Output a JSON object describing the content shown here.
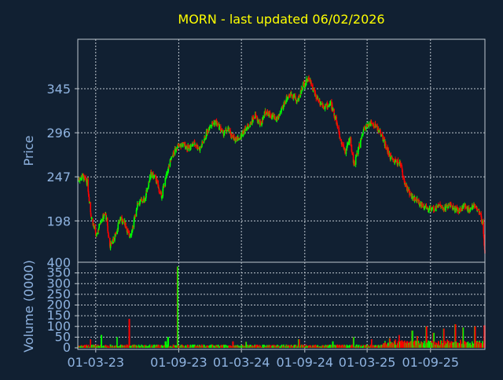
{
  "chart_data": {
    "type": "candlestick",
    "title": "MORN - last updated 06/02/2026",
    "ylabel_price": "Price",
    "ylabel_volume": "Volume (0000)",
    "price_ticks": [
      "345",
      "296",
      "247",
      "198"
    ],
    "price_tick_values": [
      345,
      296,
      247,
      198
    ],
    "price_ylim": [
      152,
      400
    ],
    "volume_top_tick": "400",
    "volume_ticks": [
      "350",
      "300",
      "250",
      "200",
      "150",
      "100",
      "50",
      "0"
    ],
    "volume_tick_values": [
      350,
      300,
      250,
      200,
      150,
      100,
      50,
      0
    ],
    "volume_ylim": [
      0,
      400
    ],
    "x_tick_labels": [
      "01-03-23",
      "01-09-23",
      "01-03-24",
      "01-09-24",
      "01-03-25",
      "01-09-25"
    ],
    "x_tick_dates": [
      "2023-01-03",
      "2023-09-01",
      "2024-03-01",
      "2024-09-01",
      "2025-03-01",
      "2025-09-01"
    ],
    "x_range": [
      "2022-11-12",
      "2026-02-06"
    ],
    "grid": true,
    "colors": {
      "background": "#112032",
      "text": "#8fb3e0",
      "title": "#ffff00",
      "grid": "#c0c8d0",
      "axes": "#c0c8d0",
      "up": "#00ff00",
      "down": "#ff0000"
    },
    "price_path": [
      [
        "2022-11-12",
        243
      ],
      [
        "2022-11-25",
        248
      ],
      [
        "2022-12-10",
        240
      ],
      [
        "2022-12-20",
        205
      ],
      [
        "2023-01-05",
        180
      ],
      [
        "2023-01-18",
        200
      ],
      [
        "2023-02-01",
        205
      ],
      [
        "2023-02-13",
        170
      ],
      [
        "2023-02-27",
        180
      ],
      [
        "2023-03-15",
        200
      ],
      [
        "2023-03-30",
        195
      ],
      [
        "2023-04-10",
        180
      ],
      [
        "2023-04-20",
        190
      ],
      [
        "2023-05-05",
        218
      ],
      [
        "2023-05-25",
        222
      ],
      [
        "2023-06-12",
        250
      ],
      [
        "2023-06-26",
        245
      ],
      [
        "2023-07-12",
        225
      ],
      [
        "2023-07-25",
        245
      ],
      [
        "2023-08-08",
        265
      ],
      [
        "2023-08-25",
        280
      ],
      [
        "2023-09-15",
        283
      ],
      [
        "2023-10-01",
        278
      ],
      [
        "2023-10-15",
        285
      ],
      [
        "2023-11-01",
        278
      ],
      [
        "2023-11-15",
        290
      ],
      [
        "2023-12-01",
        305
      ],
      [
        "2023-12-18",
        308
      ],
      [
        "2024-01-08",
        295
      ],
      [
        "2024-01-22",
        300
      ],
      [
        "2024-02-05",
        290
      ],
      [
        "2024-02-26",
        290
      ],
      [
        "2024-03-10",
        300
      ],
      [
        "2024-03-25",
        305
      ],
      [
        "2024-04-10",
        315
      ],
      [
        "2024-04-25",
        305
      ],
      [
        "2024-05-10",
        320
      ],
      [
        "2024-05-25",
        315
      ],
      [
        "2024-06-10",
        310
      ],
      [
        "2024-06-25",
        320
      ],
      [
        "2024-07-10",
        335
      ],
      [
        "2024-07-25",
        340
      ],
      [
        "2024-08-10",
        330
      ],
      [
        "2024-08-28",
        350
      ],
      [
        "2024-09-15",
        357
      ],
      [
        "2024-09-28",
        340
      ],
      [
        "2024-10-15",
        330
      ],
      [
        "2024-10-30",
        325
      ],
      [
        "2024-11-15",
        328
      ],
      [
        "2024-12-01",
        310
      ],
      [
        "2024-12-12",
        290
      ],
      [
        "2024-12-28",
        275
      ],
      [
        "2025-01-10",
        290
      ],
      [
        "2025-01-22",
        260
      ],
      [
        "2025-02-05",
        280
      ],
      [
        "2025-02-20",
        300
      ],
      [
        "2025-03-10",
        307
      ],
      [
        "2025-03-25",
        304
      ],
      [
        "2025-04-10",
        295
      ],
      [
        "2025-04-20",
        285
      ],
      [
        "2025-05-05",
        270
      ],
      [
        "2025-05-20",
        265
      ],
      [
        "2025-06-05",
        262
      ],
      [
        "2025-06-20",
        238
      ],
      [
        "2025-07-08",
        225
      ],
      [
        "2025-07-25",
        220
      ],
      [
        "2025-08-10",
        215
      ],
      [
        "2025-08-25",
        210
      ],
      [
        "2025-09-10",
        212
      ],
      [
        "2025-09-25",
        215
      ],
      [
        "2025-10-10",
        212
      ],
      [
        "2025-10-25",
        216
      ],
      [
        "2025-11-10",
        212
      ],
      [
        "2025-11-25",
        210
      ],
      [
        "2025-12-08",
        215
      ],
      [
        "2025-12-20",
        210
      ],
      [
        "2026-01-05",
        215
      ],
      [
        "2026-01-20",
        208
      ],
      [
        "2026-01-30",
        195
      ],
      [
        "2026-02-06",
        163
      ]
    ],
    "volume_baseline": 12,
    "volume_spikes": [
      [
        "2022-12-18",
        40
      ],
      [
        "2023-01-20",
        60
      ],
      [
        "2023-03-05",
        50
      ],
      [
        "2023-04-10",
        135
      ],
      [
        "2023-07-25",
        30
      ],
      [
        "2023-08-01",
        50
      ],
      [
        "2023-08-28",
        380
      ],
      [
        "2024-02-05",
        30
      ],
      [
        "2024-03-15",
        28
      ],
      [
        "2024-08-15",
        40
      ],
      [
        "2024-11-22",
        30
      ],
      [
        "2025-01-20",
        50
      ],
      [
        "2025-03-15",
        40
      ],
      [
        "2025-05-05",
        45
      ],
      [
        "2025-06-01",
        60
      ],
      [
        "2025-07-10",
        80
      ],
      [
        "2025-07-25",
        55
      ],
      [
        "2025-08-20",
        100
      ],
      [
        "2025-09-10",
        70
      ],
      [
        "2025-10-10",
        90
      ],
      [
        "2025-11-12",
        110
      ],
      [
        "2025-12-05",
        95
      ],
      [
        "2026-01-08",
        100
      ],
      [
        "2026-02-05",
        105
      ]
    ]
  }
}
